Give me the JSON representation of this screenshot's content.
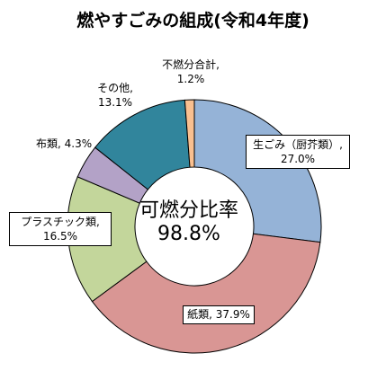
{
  "chart_data": {
    "type": "pie",
    "title": "燃やすごみの組成(令和4年度)",
    "donut": true,
    "start": "top",
    "direction": "clockwise",
    "center_text": {
      "label": "可燃分比率",
      "value": "98.8%"
    },
    "slices": [
      {
        "name": "生ごみ（厨芥類）",
        "value": 27.0,
        "label_value": "27.0%",
        "color": "#95b3d7"
      },
      {
        "name": "紙類",
        "value": 37.9,
        "label_value": "37.9%",
        "color": "#d99694"
      },
      {
        "name": "プラスチック類",
        "value": 16.5,
        "label_value": "16.5%",
        "color": "#c3d69b"
      },
      {
        "name": "布類",
        "value": 4.3,
        "label_value": "4.3%",
        "color": "#b3a2c7"
      },
      {
        "name": "その他",
        "value": 13.1,
        "label_value": "13.1%",
        "color": "#31859c"
      },
      {
        "name": "不燃分合計",
        "value": 1.2,
        "label_value": "1.2%",
        "color": "#fac090"
      }
    ]
  }
}
